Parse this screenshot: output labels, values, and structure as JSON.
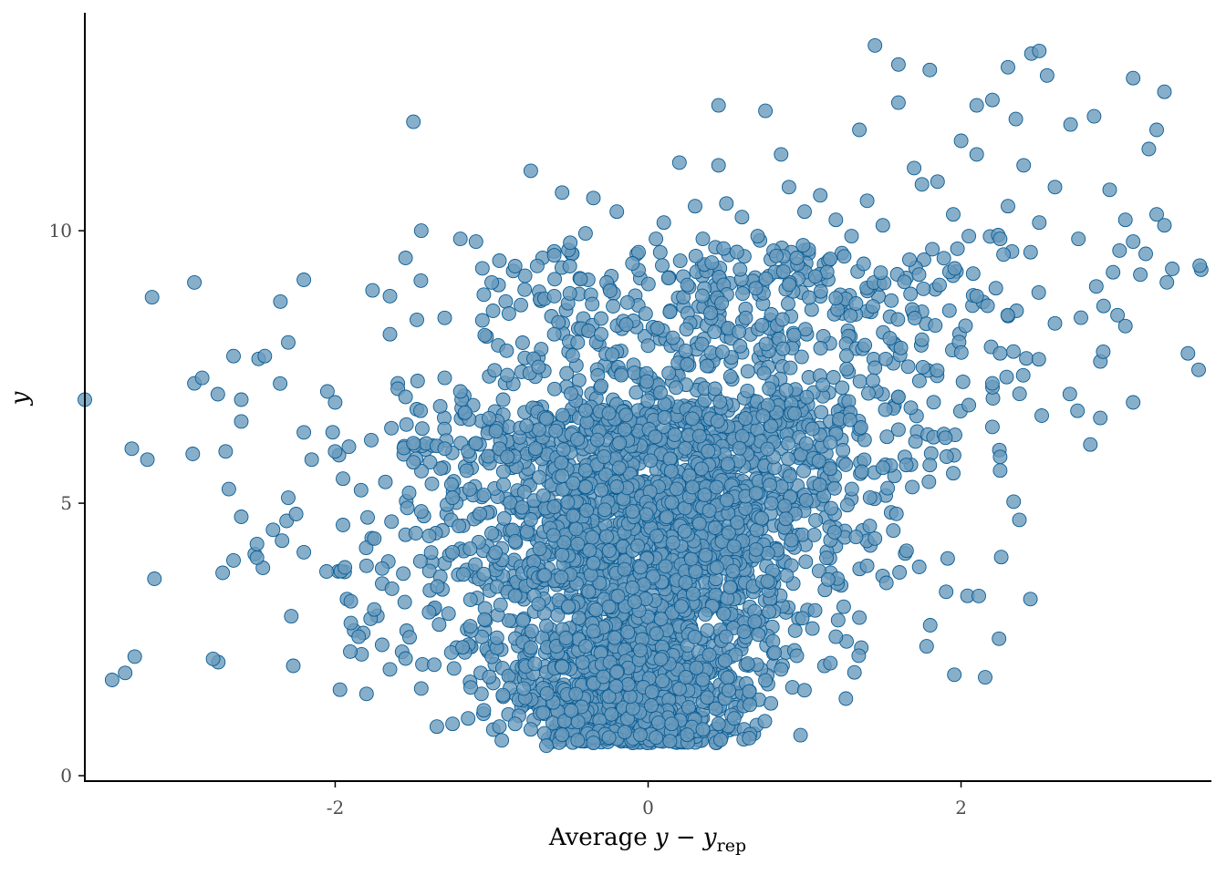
{
  "colors": {
    "point_fill": "#6a9bbd",
    "point_stroke": "#0b5d94",
    "axis": "#000000",
    "tick_label": "#4d4d4d"
  },
  "chart_data": {
    "type": "scatter",
    "xlabel": {
      "prefix": "Average ",
      "var1": "y",
      "op": " − ",
      "var2": "y",
      "subscript": "rep"
    },
    "ylabel": "y",
    "xlim": [
      -3.6,
      3.6
    ],
    "ylim": [
      -0.1,
      14.0
    ],
    "xticks": [
      -2,
      0,
      2
    ],
    "yticks": [
      0,
      5,
      10
    ],
    "xtick_labels": [
      "-2",
      "0",
      "2"
    ],
    "ytick_labels": [
      "0",
      "5",
      "10"
    ],
    "grid": false,
    "legend": "none",
    "points": [
      [
        -3.6,
        6.9
      ],
      [
        -3.3,
        6.0
      ],
      [
        -3.2,
        5.8
      ],
      [
        -2.9,
        9.05
      ],
      [
        -2.9,
        7.2
      ],
      [
        -2.85,
        7.3
      ],
      [
        -2.75,
        7.0
      ],
      [
        -2.7,
        5.95
      ],
      [
        -2.65,
        7.7
      ],
      [
        -2.6,
        6.9
      ],
      [
        -2.6,
        6.5
      ],
      [
        -2.6,
        4.75
      ],
      [
        -2.65,
        3.95
      ],
      [
        -2.5,
        4.25
      ],
      [
        -2.5,
        4.0
      ],
      [
        -2.45,
        7.7
      ],
      [
        -2.35,
        8.7
      ],
      [
        -2.3,
        7.95
      ],
      [
        -2.3,
        5.1
      ],
      [
        -2.25,
        4.8
      ],
      [
        -2.2,
        9.1
      ],
      [
        -2.2,
        6.3
      ],
      [
        -2.2,
        4.1
      ],
      [
        -2.15,
        5.8
      ],
      [
        -2.05,
        7.05
      ],
      [
        -2.0,
        6.85
      ],
      [
        -2.0,
        5.95
      ],
      [
        -1.95,
        5.45
      ],
      [
        -1.95,
        4.6
      ],
      [
        -1.9,
        3.2
      ],
      [
        -1.85,
        2.55
      ],
      [
        -1.8,
        1.5
      ],
      [
        -1.8,
        3.85
      ],
      [
        -1.75,
        4.35
      ],
      [
        -1.7,
        3.8
      ],
      [
        -1.65,
        8.8
      ],
      [
        -1.65,
        8.1
      ],
      [
        -1.6,
        7.2
      ],
      [
        -1.6,
        7.1
      ],
      [
        -1.55,
        9.5
      ],
      [
        -1.55,
        6.95
      ],
      [
        -1.5,
        6.1
      ],
      [
        -1.5,
        5.75
      ],
      [
        -1.45,
        4.85
      ],
      [
        -1.4,
        4.4
      ],
      [
        -1.4,
        3.0
      ],
      [
        -1.35,
        6.05
      ],
      [
        -1.3,
        8.4
      ],
      [
        -1.3,
        7.3
      ],
      [
        -1.3,
        6.0
      ],
      [
        -1.25,
        5.1
      ],
      [
        -1.25,
        4.1
      ],
      [
        -1.2,
        7.05
      ],
      [
        -1.15,
        5.95
      ],
      [
        -1.1,
        6.1
      ],
      [
        -1.05,
        5.15
      ],
      [
        -1.05,
        3.7
      ],
      [
        -1.0,
        4.45
      ],
      [
        -0.95,
        9.45
      ],
      [
        -0.95,
        6.0
      ],
      [
        -0.9,
        7.35
      ],
      [
        -0.9,
        5.85
      ],
      [
        -0.85,
        4.3
      ],
      [
        -0.85,
        3.3
      ],
      [
        -0.8,
        2.85
      ],
      [
        -0.8,
        2.45
      ],
      [
        -0.75,
        4.7
      ],
      [
        -0.75,
        2.35
      ],
      [
        -0.7,
        7.5
      ],
      [
        -0.7,
        3.15
      ],
      [
        -0.65,
        6.55
      ],
      [
        -0.65,
        2.75
      ],
      [
        -0.6,
        8.8
      ],
      [
        -0.6,
        8.1
      ],
      [
        -0.55,
        5.5
      ],
      [
        -0.55,
        4.05
      ],
      [
        -0.55,
        2.0
      ],
      [
        -0.5,
        9.35
      ],
      [
        -0.5,
        8.85
      ],
      [
        -0.45,
        7.95
      ],
      [
        -0.45,
        4.25
      ],
      [
        -0.4,
        6.7
      ],
      [
        -0.4,
        5.6
      ],
      [
        -0.35,
        3.9
      ],
      [
        -0.35,
        2.65
      ],
      [
        -0.3,
        8.1
      ],
      [
        -0.3,
        7.15
      ],
      [
        -0.25,
        6.65
      ],
      [
        -0.25,
        3.1
      ],
      [
        -0.2,
        5.3
      ],
      [
        -0.2,
        1.9
      ],
      [
        -0.15,
        6.35
      ],
      [
        -0.1,
        4.85
      ],
      [
        -0.1,
        3.45
      ],
      [
        -0.05,
        2.3
      ],
      [
        -1.5,
        12.0
      ],
      [
        -1.45,
        10.0
      ],
      [
        -1.2,
        9.85
      ],
      [
        -1.1,
        9.8
      ],
      [
        -1.0,
        9.05
      ],
      [
        -0.85,
        9.35
      ],
      [
        -0.75,
        11.1
      ],
      [
        -0.6,
        9.55
      ],
      [
        -0.55,
        10.7
      ],
      [
        -0.4,
        9.95
      ],
      [
        -0.35,
        10.6
      ],
      [
        -0.2,
        10.35
      ],
      [
        -0.1,
        9.4
      ],
      [
        0.05,
        9.85
      ],
      [
        0.1,
        10.15
      ],
      [
        0.2,
        11.25
      ],
      [
        0.3,
        10.45
      ],
      [
        0.35,
        9.85
      ],
      [
        0.45,
        11.2
      ],
      [
        0.5,
        10.5
      ],
      [
        0.6,
        10.25
      ],
      [
        0.7,
        9.9
      ],
      [
        0.75,
        12.2
      ],
      [
        0.85,
        11.4
      ],
      [
        0.9,
        10.8
      ],
      [
        0.95,
        9.5
      ],
      [
        1.0,
        10.35
      ],
      [
        1.1,
        10.65
      ],
      [
        1.2,
        10.2
      ],
      [
        1.3,
        9.9
      ],
      [
        1.35,
        11.85
      ],
      [
        1.4,
        10.55
      ],
      [
        1.5,
        10.1
      ],
      [
        1.6,
        12.35
      ],
      [
        1.7,
        11.15
      ],
      [
        1.75,
        10.85
      ],
      [
        1.8,
        12.95
      ],
      [
        1.85,
        10.9
      ],
      [
        1.95,
        10.3
      ],
      [
        2.0,
        11.65
      ],
      [
        2.05,
        9.9
      ],
      [
        2.1,
        11.4
      ],
      [
        2.2,
        12.4
      ],
      [
        2.25,
        9.85
      ],
      [
        2.3,
        10.45
      ],
      [
        2.35,
        12.05
      ],
      [
        2.4,
        11.2
      ],
      [
        2.5,
        10.15
      ],
      [
        2.55,
        12.85
      ],
      [
        2.6,
        10.8
      ],
      [
        2.7,
        11.95
      ],
      [
        2.75,
        9.85
      ],
      [
        2.85,
        12.1
      ],
      [
        2.95,
        10.75
      ],
      [
        3.05,
        10.2
      ],
      [
        3.1,
        9.8
      ],
      [
        3.2,
        11.5
      ],
      [
        3.25,
        10.3
      ],
      [
        3.3,
        12.55
      ],
      [
        3.35,
        9.3
      ],
      [
        3.45,
        7.75
      ],
      [
        2.45,
        13.25
      ],
      [
        2.5,
        13.3
      ],
      [
        2.3,
        13.0
      ],
      [
        2.1,
        12.3
      ],
      [
        1.45,
        13.4
      ],
      [
        1.6,
        13.05
      ],
      [
        0.45,
        12.3
      ],
      [
        3.1,
        12.8
      ],
      [
        3.25,
        11.85
      ],
      [
        3.3,
        10.1
      ],
      [
        3.0,
        8.45
      ],
      [
        3.05,
        8.25
      ],
      [
        3.1,
        6.85
      ],
      [
        2.6,
        8.3
      ],
      [
        2.2,
        6.4
      ],
      [
        2.25,
        5.85
      ],
      [
        2.25,
        5.6
      ],
      [
        2.2,
        7.2
      ],
      [
        2.25,
        7.75
      ],
      [
        2.1,
        8.8
      ],
      [
        2.05,
        6.8
      ],
      [
        1.95,
        5.55
      ],
      [
        1.9,
        6.2
      ],
      [
        1.8,
        5.7
      ],
      [
        1.75,
        8.0
      ],
      [
        1.65,
        5.7
      ],
      [
        1.6,
        6.35
      ],
      [
        1.6,
        6.95
      ],
      [
        1.5,
        5.65
      ],
      [
        1.45,
        4.35
      ],
      [
        1.4,
        3.85
      ],
      [
        1.35,
        2.9
      ],
      [
        1.25,
        3.1
      ],
      [
        1.2,
        2.55
      ],
      [
        1.15,
        3.6
      ],
      [
        1.05,
        2.7
      ],
      [
        0.95,
        2.2
      ],
      [
        0.85,
        1.95
      ],
      [
        0.75,
        1.75
      ],
      [
        0.65,
        1.3
      ],
      [
        0.55,
        1.05
      ],
      [
        0.45,
        0.95
      ],
      [
        0.35,
        0.85
      ],
      [
        0.25,
        0.75
      ],
      [
        0.15,
        0.95
      ],
      [
        0.05,
        0.7
      ],
      [
        -0.05,
        0.75
      ],
      [
        -0.15,
        0.8
      ],
      [
        -0.25,
        0.7
      ],
      [
        -0.35,
        0.6
      ],
      [
        -0.45,
        0.65
      ],
      [
        -0.55,
        0.75
      ],
      [
        -0.65,
        0.55
      ],
      [
        -0.75,
        0.85
      ],
      [
        -0.85,
        0.95
      ],
      [
        -0.95,
        0.9
      ],
      [
        -1.05,
        1.2
      ],
      [
        -1.15,
        1.05
      ],
      [
        -1.25,
        0.95
      ],
      [
        -1.35,
        0.9
      ],
      [
        -1.45,
        1.6
      ],
      [
        -1.55,
        2.15
      ],
      [
        -1.65,
        1.95
      ],
      [
        -1.7,
        2.4
      ],
      [
        -1.75,
        3.05
      ],
      [
        -1.9,
        2.8
      ]
    ]
  }
}
